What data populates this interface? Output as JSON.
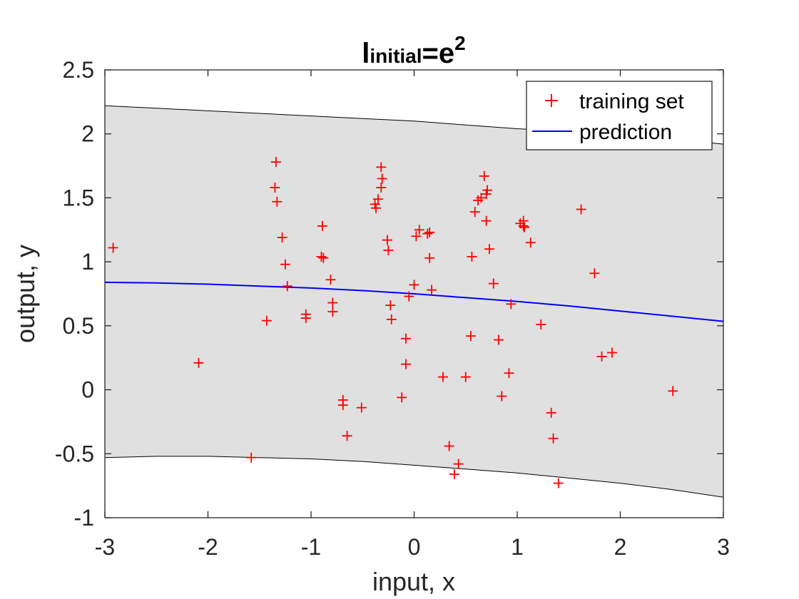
{
  "chart_data": {
    "type": "line",
    "title": {
      "base": "l",
      "subscript": "initial",
      "middle": "=e",
      "superscript": "2"
    },
    "xlabel": "input, x",
    "ylabel": "output, y",
    "xlim": [
      -3,
      3
    ],
    "ylim": [
      -1,
      2.5
    ],
    "xticks": [
      -3,
      -2,
      -1,
      0,
      1,
      2,
      3
    ],
    "yticks": [
      -1,
      -0.5,
      0,
      0.5,
      1,
      1.5,
      2,
      2.5
    ],
    "xtick_labels": [
      "-3",
      "-2",
      "-1",
      "0",
      "1",
      "2",
      "3"
    ],
    "ytick_labels": [
      "-1",
      "-0.5",
      "0",
      "0.5",
      "1",
      "1.5",
      "2",
      "2.5"
    ],
    "grid": false,
    "legend": {
      "placement": "top-right",
      "entries": [
        {
          "label": "training set",
          "marker": "+",
          "color": "#ff0000"
        },
        {
          "label": "prediction",
          "marker": "line",
          "color": "#0000ff"
        }
      ]
    },
    "series": [
      {
        "name": "training set",
        "kind": "scatter",
        "marker": "+",
        "color": "#ff0000",
        "points": [
          [
            -2.92,
            1.11
          ],
          [
            -2.09,
            0.21
          ],
          [
            -1.58,
            -0.53
          ],
          [
            -1.43,
            0.54
          ],
          [
            -1.34,
            1.78
          ],
          [
            -1.35,
            1.58
          ],
          [
            -1.33,
            1.47
          ],
          [
            -1.28,
            1.19
          ],
          [
            -1.25,
            0.98
          ],
          [
            -1.23,
            0.81
          ],
          [
            -1.05,
            0.59
          ],
          [
            -1.05,
            0.56
          ],
          [
            -0.89,
            1.28
          ],
          [
            -0.9,
            1.04
          ],
          [
            -0.88,
            1.03
          ],
          [
            -0.81,
            0.86
          ],
          [
            -0.79,
            0.68
          ],
          [
            -0.79,
            0.61
          ],
          [
            -0.69,
            -0.08
          ],
          [
            -0.69,
            -0.12
          ],
          [
            -0.65,
            -0.36
          ],
          [
            -0.51,
            -0.14
          ],
          [
            -0.38,
            1.45
          ],
          [
            -0.37,
            1.42
          ],
          [
            -0.35,
            1.49
          ],
          [
            -0.32,
            1.74
          ],
          [
            -0.32,
            1.58
          ],
          [
            -0.31,
            1.65
          ],
          [
            -0.26,
            1.17
          ],
          [
            -0.25,
            1.09
          ],
          [
            -0.23,
            0.66
          ],
          [
            -0.22,
            0.55
          ],
          [
            -0.12,
            -0.06
          ],
          [
            -0.08,
            0.4
          ],
          [
            -0.08,
            0.2
          ],
          [
            -0.05,
            0.73
          ],
          [
            0.0,
            0.82
          ],
          [
            0.02,
            1.2
          ],
          [
            0.05,
            1.25
          ],
          [
            0.13,
            1.22
          ],
          [
            0.15,
            1.23
          ],
          [
            0.15,
            1.03
          ],
          [
            0.17,
            0.78
          ],
          [
            0.28,
            0.1
          ],
          [
            0.34,
            -0.44
          ],
          [
            0.39,
            -0.66
          ],
          [
            0.43,
            -0.58
          ],
          [
            0.5,
            0.1
          ],
          [
            0.55,
            0.42
          ],
          [
            0.56,
            1.04
          ],
          [
            0.59,
            1.39
          ],
          [
            0.62,
            1.48
          ],
          [
            0.65,
            1.5
          ],
          [
            0.68,
            1.67
          ],
          [
            0.7,
            1.53
          ],
          [
            0.7,
            1.32
          ],
          [
            0.71,
            1.56
          ],
          [
            0.73,
            1.1
          ],
          [
            0.77,
            0.83
          ],
          [
            0.82,
            0.39
          ],
          [
            0.85,
            -0.05
          ],
          [
            0.92,
            0.13
          ],
          [
            0.94,
            0.67
          ],
          [
            1.03,
            1.3
          ],
          [
            1.06,
            1.28
          ],
          [
            1.06,
            1.32
          ],
          [
            1.07,
            1.27
          ],
          [
            1.13,
            1.15
          ],
          [
            1.23,
            0.51
          ],
          [
            1.33,
            -0.18
          ],
          [
            1.35,
            -0.38
          ],
          [
            1.4,
            -0.73
          ],
          [
            1.62,
            1.41
          ],
          [
            1.75,
            0.91
          ],
          [
            1.82,
            0.26
          ],
          [
            1.92,
            0.29
          ],
          [
            2.51,
            -0.01
          ]
        ]
      },
      {
        "name": "prediction",
        "kind": "line",
        "color": "#0000ff",
        "points": [
          [
            -3,
            0.84
          ],
          [
            -2.5,
            0.835
          ],
          [
            -2,
            0.825
          ],
          [
            -1.5,
            0.81
          ],
          [
            -1,
            0.795
          ],
          [
            -0.5,
            0.775
          ],
          [
            0,
            0.75
          ],
          [
            0.5,
            0.72
          ],
          [
            1,
            0.69
          ],
          [
            1.5,
            0.655
          ],
          [
            2,
            0.615
          ],
          [
            2.5,
            0.575
          ],
          [
            3,
            0.535
          ]
        ]
      },
      {
        "name": "confidence band",
        "kind": "band",
        "fill": "#e0e0e0",
        "edge": "#000000",
        "upper": [
          [
            -3,
            2.22
          ],
          [
            -2.5,
            2.2
          ],
          [
            -2,
            2.18
          ],
          [
            -1.5,
            2.16
          ],
          [
            -1,
            2.14
          ],
          [
            -0.5,
            2.12
          ],
          [
            0,
            2.1
          ],
          [
            0.5,
            2.07
          ],
          [
            1,
            2.04
          ],
          [
            1.5,
            2.02
          ],
          [
            2,
            1.99
          ],
          [
            2.5,
            1.96
          ],
          [
            3,
            1.92
          ]
        ],
        "lower": [
          [
            -3,
            -0.53
          ],
          [
            -2.5,
            -0.52
          ],
          [
            -2,
            -0.52
          ],
          [
            -1.5,
            -0.53
          ],
          [
            -1,
            -0.54
          ],
          [
            -0.5,
            -0.56
          ],
          [
            0,
            -0.59
          ],
          [
            0.5,
            -0.62
          ],
          [
            1,
            -0.65
          ],
          [
            1.5,
            -0.69
          ],
          [
            2,
            -0.73
          ],
          [
            2.5,
            -0.78
          ],
          [
            3,
            -0.84
          ]
        ]
      }
    ]
  }
}
